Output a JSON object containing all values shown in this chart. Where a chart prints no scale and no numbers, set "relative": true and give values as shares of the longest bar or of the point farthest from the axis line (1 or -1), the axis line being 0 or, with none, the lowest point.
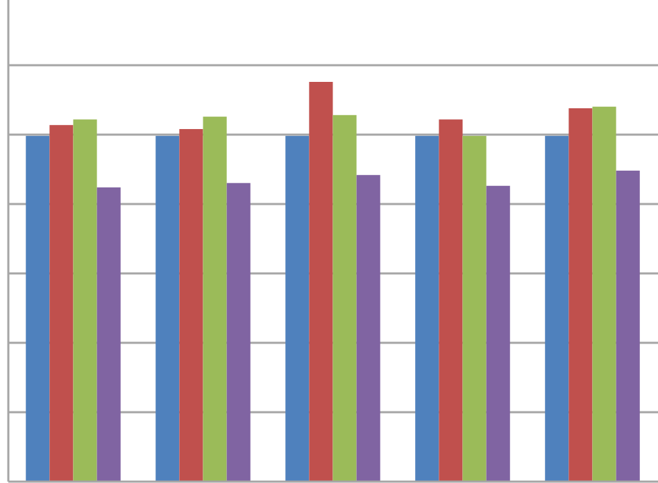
{
  "chart_data": {
    "type": "bar",
    "relative": true,
    "grid": "y",
    "categories": [
      null,
      null,
      null,
      null,
      null
    ],
    "series": [
      {
        "color": "#4f81bd",
        "values": [
          0.865,
          0.865,
          0.865,
          0.865,
          0.865
        ]
      },
      {
        "color": "#c0504d",
        "values": [
          0.892,
          0.882,
          1,
          0.906,
          0.934
        ]
      },
      {
        "color": "#9bbb59",
        "values": [
          0.906,
          0.913,
          0.917,
          0.865,
          0.938
        ]
      },
      {
        "color": "#8064a2",
        "values": [
          0.736,
          0.747,
          0.767,
          0.74,
          0.778
        ]
      }
    ]
  }
}
